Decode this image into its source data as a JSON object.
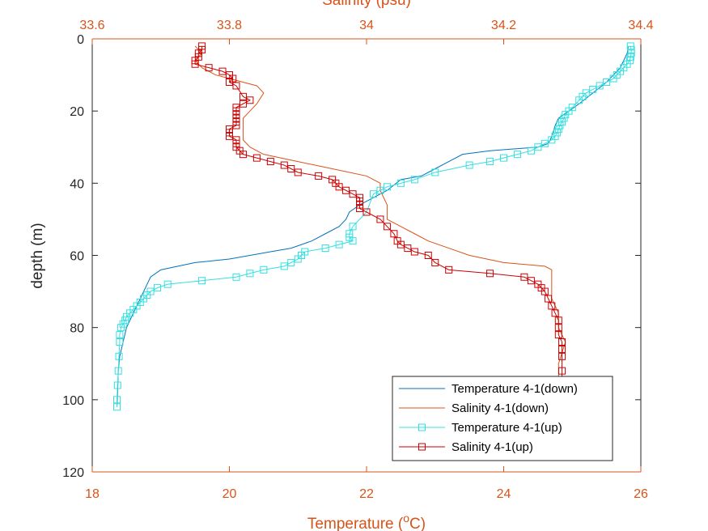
{
  "chart_data": {
    "type": "line",
    "title": "",
    "xlabel_bottom": "Temperature (",
    "xlabel_bottom_sup": "o",
    "xlabel_bottom_unit": "C)",
    "xlabel_top": "Salinity (psu)",
    "ylabel": "depth (m)",
    "xlim_bottom": [
      18,
      26
    ],
    "xlim_top": [
      33.6,
      34.4
    ],
    "ylim": [
      0,
      120
    ],
    "y_reversed": true,
    "xticks_bottom": [
      18,
      20,
      22,
      24,
      26
    ],
    "xtick_labels_bottom": [
      "18",
      "20",
      "22",
      "24",
      "26"
    ],
    "xticks_top": [
      33.6,
      33.8,
      34.0,
      34.2,
      34.4
    ],
    "xtick_labels_top": [
      "33.6",
      "33.8",
      "34",
      "34.2",
      "34.4"
    ],
    "yticks": [
      0,
      20,
      40,
      60,
      80,
      100,
      120
    ],
    "ytick_labels": [
      "0",
      "20",
      "40",
      "60",
      "80",
      "100",
      "120"
    ],
    "grid": false,
    "legend_position": "bottom-right",
    "series": [
      {
        "name": "Temperature 4-1(down)",
        "axis": "bottom",
        "color": "#0072BD",
        "marker": "none",
        "x": [
          25.82,
          25.8,
          25.7,
          25.5,
          25.3,
          25.1,
          24.95,
          24.8,
          24.75,
          24.72,
          24.68,
          24.65,
          24.5,
          23.8,
          23.4,
          23.2,
          23.0,
          22.8,
          22.5,
          22.3,
          22.1,
          21.9,
          21.75,
          21.7,
          21.6,
          21.4,
          21.2,
          20.9,
          20.6,
          20.3,
          20.0,
          19.5,
          19.0,
          18.85,
          18.8,
          18.75,
          18.7,
          18.6,
          18.5,
          18.45,
          18.4,
          18.38,
          18.37,
          18.36
        ],
        "y": [
          2,
          4,
          8,
          12,
          15,
          18,
          20,
          22,
          24,
          26,
          28,
          29,
          30,
          31,
          32,
          34,
          36,
          38,
          39,
          42,
          44,
          46,
          48,
          50,
          52,
          54,
          56,
          58,
          59,
          60,
          61,
          62,
          64,
          66,
          68,
          70,
          72,
          76,
          80,
          84,
          88,
          92,
          98,
          102
        ]
      },
      {
        "name": "Salinity 4-1(down)",
        "axis": "top",
        "color": "#D95319",
        "marker": "none",
        "x": [
          33.75,
          33.76,
          33.75,
          33.76,
          33.78,
          33.8,
          33.82,
          33.84,
          33.85,
          33.84,
          33.83,
          33.82,
          33.82,
          33.82,
          33.83,
          33.85,
          33.9,
          33.95,
          34.0,
          34.02,
          34.02,
          34.03,
          34.03,
          34.05,
          34.07,
          34.09,
          34.12,
          34.15,
          34.2,
          34.26,
          34.27,
          34.27,
          34.27,
          34.28,
          34.28,
          34.29,
          34.28,
          34.28,
          34.28
        ],
        "y": [
          2,
          4,
          6,
          8,
          10,
          11,
          12,
          13,
          15,
          18,
          20,
          22,
          25,
          28,
          30,
          32,
          34,
          36,
          38,
          40,
          42,
          46,
          50,
          52,
          54,
          56,
          58,
          60,
          62,
          63,
          64,
          68,
          72,
          76,
          80,
          84,
          90,
          95,
          102
        ]
      },
      {
        "name": "Temperature 4-1(up)",
        "axis": "bottom",
        "color": "#33E0E0",
        "marker": "square",
        "x": [
          25.85,
          25.86,
          25.86,
          25.85,
          25.84,
          25.8,
          25.75,
          25.7,
          25.65,
          25.6,
          25.5,
          25.4,
          25.3,
          25.2,
          25.15,
          25.1,
          25.0,
          24.95,
          24.9,
          24.88,
          24.85,
          24.82,
          24.8,
          24.78,
          24.75,
          24.7,
          24.6,
          24.5,
          24.4,
          24.2,
          24.0,
          23.8,
          23.5,
          23.0,
          22.7,
          22.5,
          22.3,
          22.2,
          22.1,
          22.0,
          21.8,
          21.75,
          21.75,
          21.8,
          21.6,
          21.4,
          21.1,
          21.05,
          21.0,
          20.9,
          20.8,
          20.5,
          20.3,
          20.1,
          19.6,
          19.1,
          18.95,
          18.85,
          18.8,
          18.75,
          18.7,
          18.65,
          18.6,
          18.55,
          18.5,
          18.48,
          18.45,
          18.42,
          18.4,
          18.4,
          18.39,
          18.38,
          18.37,
          18.36,
          18.36
        ],
        "y": [
          2,
          3,
          4,
          5,
          6,
          7,
          8,
          9,
          10,
          11,
          12,
          13,
          14,
          15,
          16,
          17,
          19,
          20,
          21,
          22,
          23,
          24,
          25,
          26,
          27,
          28,
          29,
          30,
          31,
          32,
          33,
          34,
          35,
          37,
          39,
          40,
          41,
          42,
          43,
          48,
          52,
          54,
          55,
          56,
          57,
          58,
          59,
          60,
          61,
          62,
          63,
          64,
          65,
          66,
          67,
          68,
          69,
          70,
          71,
          72,
          73,
          74,
          75,
          76,
          77,
          78,
          79,
          80,
          82,
          84,
          88,
          92,
          96,
          100,
          102
        ]
      },
      {
        "name": "Salinity 4-1(up)",
        "axis": "top",
        "color": "#CC0000",
        "marker": "square",
        "x": [
          33.76,
          33.76,
          33.755,
          33.755,
          33.75,
          33.75,
          33.77,
          33.79,
          33.8,
          33.805,
          33.8,
          33.81,
          33.82,
          33.83,
          33.82,
          33.81,
          33.81,
          33.81,
          33.81,
          33.81,
          33.81,
          33.8,
          33.8,
          33.8,
          33.81,
          33.81,
          33.81,
          33.815,
          33.82,
          33.84,
          33.86,
          33.88,
          33.89,
          33.9,
          33.93,
          33.95,
          33.955,
          33.96,
          33.97,
          33.98,
          33.99,
          33.99,
          33.99,
          33.99,
          34.0,
          34.02,
          34.03,
          34.04,
          34.045,
          34.05,
          34.06,
          34.07,
          34.09,
          34.1,
          34.12,
          34.18,
          34.23,
          34.24,
          34.25,
          34.255,
          34.26,
          34.265,
          34.27,
          34.275,
          34.28,
          34.28,
          34.28,
          34.285,
          34.285,
          34.285,
          34.285,
          34.285,
          34.285
        ],
        "y": [
          2,
          3,
          4,
          5,
          6,
          7,
          8,
          9,
          10,
          11,
          12,
          13,
          16,
          17,
          18,
          19,
          20,
          21,
          22,
          23,
          24,
          25,
          26,
          27,
          28,
          29,
          30,
          31,
          32,
          33,
          34,
          35,
          36,
          37,
          38,
          39,
          40,
          41,
          42,
          43,
          44,
          45,
          46,
          47,
          48,
          50,
          52,
          54,
          56,
          57,
          58,
          59,
          60,
          62,
          64,
          65,
          66,
          67,
          68,
          69,
          70,
          72,
          74,
          76,
          78,
          80,
          82,
          84,
          86,
          88,
          92,
          96,
          102
        ]
      }
    ]
  },
  "colors": {
    "axis_color_orange": "#D95319",
    "axis_color_black": "#262626"
  }
}
